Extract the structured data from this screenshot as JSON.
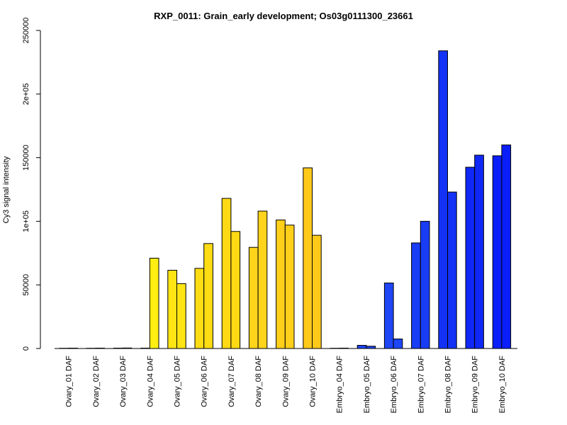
{
  "chart_data": {
    "type": "bar",
    "title": "RXP_0011: Grain_early development; Os03g0111300_23661",
    "xlabel": "",
    "ylabel": "Cy3 signal intensity",
    "ylim": [
      0,
      250000
    ],
    "yticks": [
      0,
      50000,
      100000,
      150000,
      200000,
      250000
    ],
    "ytick_labels": [
      "0",
      "50000",
      "1e+05",
      "150000",
      "2e+05",
      "250000"
    ],
    "categories": [
      "Ovary_01 DAF",
      "Ovary_02 DAF",
      "Ovary_03 DAF",
      "Ovary_04 DAF",
      "Ovary_05 DAF",
      "Ovary_06 DAF",
      "Ovary_07 DAF",
      "Ovary_08 DAF",
      "Ovary_09 DAF",
      "Ovary_10 DAF",
      "Embryo_04 DAF",
      "Embryo_05 DAF",
      "Embryo_06 DAF",
      "Embryo_07 DAF",
      "Embryo_08 DAF",
      "Embryo_09 DAF",
      "Embryo_10 DAF"
    ],
    "series": [
      {
        "values": [
          200,
          200,
          300,
          300,
          61500,
          63000,
          118000,
          79500,
          101000,
          142000,
          200,
          2500,
          51500,
          83000,
          234000,
          142500,
          151500
        ]
      },
      {
        "values": [
          300,
          300,
          400,
          71000,
          51000,
          82500,
          92000,
          108000,
          97000,
          89000,
          300,
          1800,
          7500,
          100000,
          123000,
          152000,
          160000
        ]
      }
    ],
    "colors": [
      "#FFFF00",
      "#FFF700",
      "#FFEE00",
      "#FFEE11",
      "#FFE514",
      "#FFDC14",
      "#FFD914",
      "#FFD41A",
      "#FFCF1A",
      "#FFC91A",
      "#1E46F5",
      "#1E46F5",
      "#1E46F5",
      "#193CF5",
      "#1432F5",
      "#0F28F5",
      "#0A1EFA"
    ],
    "grid": false,
    "legend": "none"
  }
}
